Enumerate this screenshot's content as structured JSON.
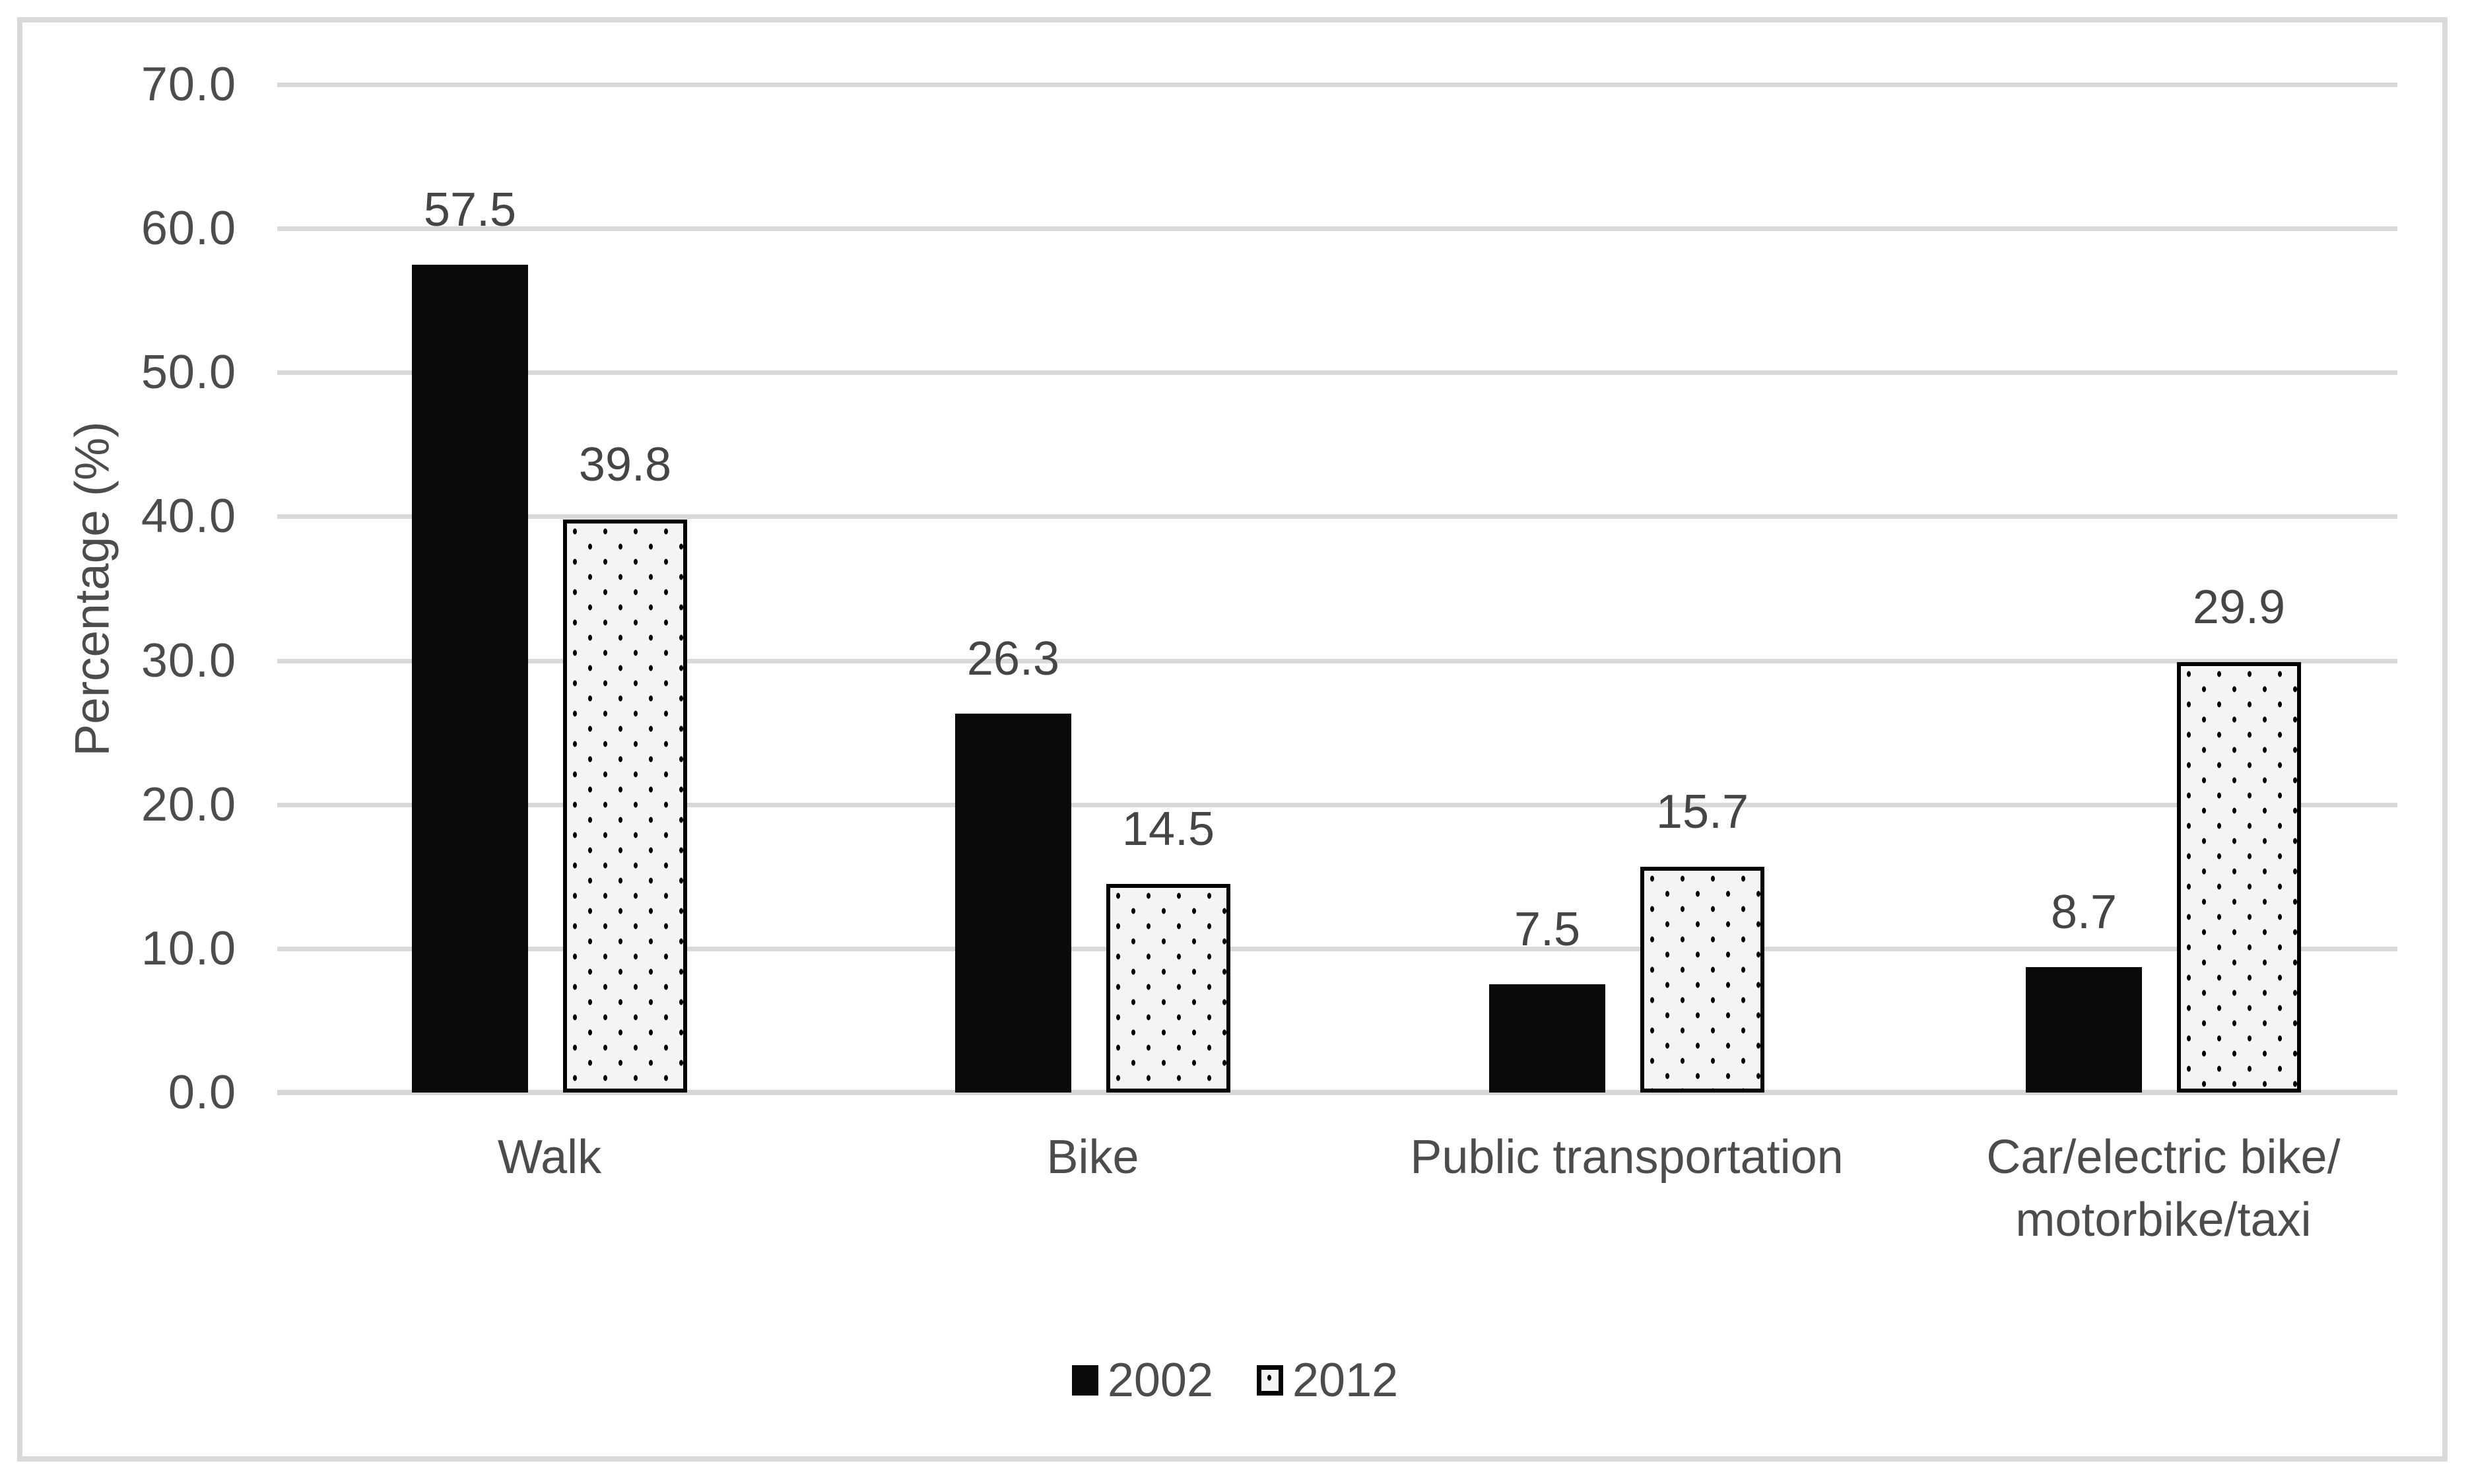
{
  "chart_data": {
    "type": "bar",
    "title": "",
    "ylabel": "Percentage (%)",
    "ylim": [
      0,
      70
    ],
    "ytick_step": 10,
    "yticks": [
      {
        "value": 70,
        "label": "70.0"
      },
      {
        "value": 60,
        "label": "60.0"
      },
      {
        "value": 50,
        "label": "50.0"
      },
      {
        "value": 40,
        "label": "40.0"
      },
      {
        "value": 30,
        "label": "30.0"
      },
      {
        "value": 20,
        "label": "20.0"
      },
      {
        "value": 10,
        "label": "10.0"
      },
      {
        "value": 0,
        "label": "0.0"
      }
    ],
    "categories": [
      "Walk",
      "Bike",
      "Public transportation",
      "Car/electric bike/\nmotorbike/taxi"
    ],
    "series": [
      {
        "name": "2002",
        "fill": "solid-black",
        "values": [
          57.5,
          26.3,
          7.5,
          8.7
        ],
        "value_labels": [
          "57.5",
          "26.3",
          "7.5",
          "8.7"
        ]
      },
      {
        "name": "2012",
        "fill": "dotted-pattern",
        "values": [
          39.8,
          14.5,
          15.7,
          29.9
        ],
        "value_labels": [
          "39.8",
          "14.5",
          "15.7",
          "29.9"
        ]
      }
    ],
    "legend": {
      "position": "bottom-center",
      "entries": [
        "2002",
        "2012"
      ]
    },
    "grid": "horizontal",
    "colors": {
      "bar_2002": "#0a0a0a",
      "bar_2012_fill": "#f4f4f4",
      "bar_2012_border": "#000000",
      "gridline": "#d9d9d9",
      "axis_line": "#d6d6d6",
      "figure_border": "#d9d9d9",
      "text": "#4c4c4c"
    }
  }
}
